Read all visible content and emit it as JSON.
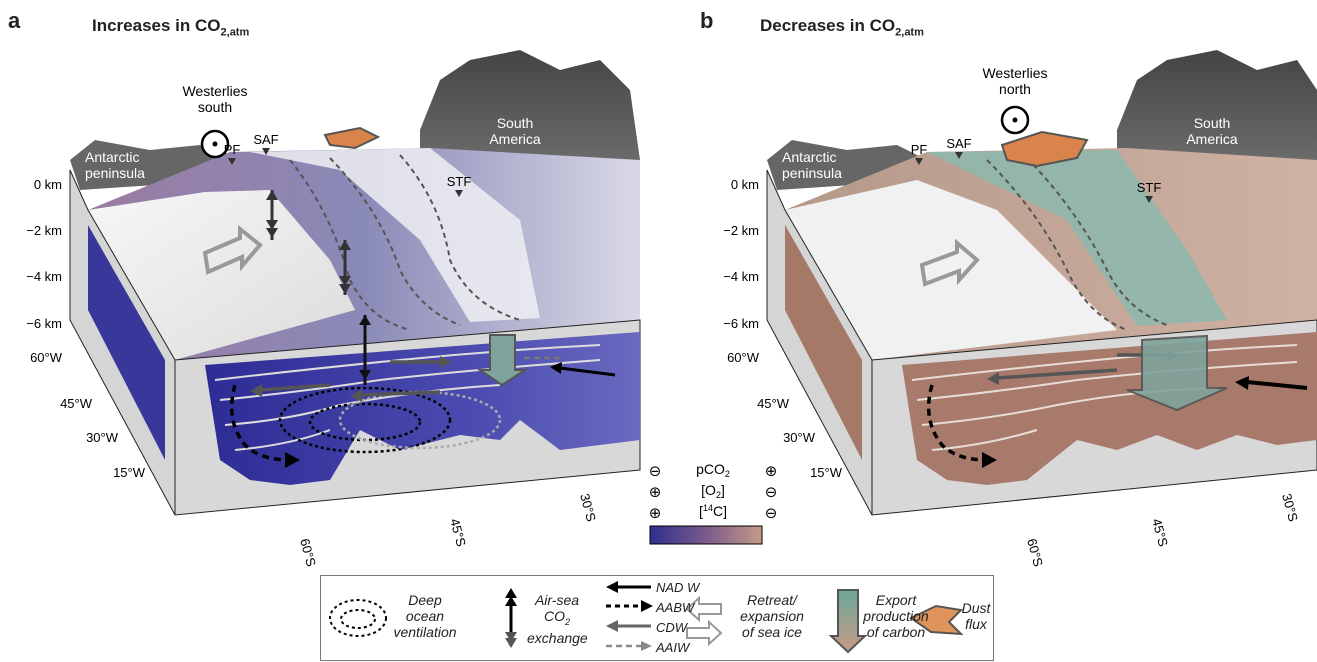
{
  "panels": [
    {
      "letter": "a",
      "title_prefix": "Increases in CO",
      "title_sub": "2,atm",
      "wind_label_line1": "Westerlies",
      "wind_label_line2": "south"
    },
    {
      "letter": "b",
      "title_prefix": "Decreases in CO",
      "title_sub": "2,atm",
      "wind_label_line1": "Westerlies",
      "wind_label_line2": "north"
    }
  ],
  "map_labels": {
    "antarctic_line1": "Antarctic",
    "antarctic_line2": "peninsula",
    "south_america_line1": "South",
    "south_america_line2": "America",
    "pf": "PF",
    "saf": "SAF",
    "stf": "STF"
  },
  "depth_ticks": [
    "0 km",
    "−2 km",
    "−4 km",
    "−6 km"
  ],
  "lon_ticks": [
    "60°W",
    "45°W",
    "30°W",
    "15°W"
  ],
  "lat_ticks": [
    "60°S",
    "45°S",
    "30°S"
  ],
  "colorbar": {
    "label_pco2": "pCO",
    "label_pco2_sub": "2",
    "label_o2": "[O",
    "label_o2_sub": "2",
    "label_o2_end": "]",
    "label_c14_pre": "[",
    "label_c14_sup": "14",
    "label_c14_end": "C]",
    "left_signs": [
      "⊖",
      "⊕",
      "⊕"
    ],
    "right_signs": [
      "⊕",
      "⊖",
      "⊖"
    ],
    "low_color": "#2e2f8f",
    "high_color": "#c69a86"
  },
  "legend": {
    "deep_ocean_line1": "Deep",
    "deep_ocean_line2": "ocean",
    "deep_ocean_line3": "ventilation",
    "airsea_line1": "Air-sea",
    "airsea_line2": "CO",
    "airsea_line2_sub": "2",
    "airsea_line3": "exchange",
    "nadw": "NAD W",
    "aabw": "AABW",
    "cdw": "CDW",
    "aaiw": "AAIW",
    "seaice_line1": "Retreat/",
    "seaice_line2": "expansion",
    "seaice_line3": "of sea ice",
    "export_line1": "Export",
    "export_line2": "production",
    "export_line3": "of carbon",
    "dust_line1": "Dust",
    "dust_line2": "flux"
  },
  "colors": {
    "ocean_blue": "#3b3b9c",
    "ocean_brown": "#a87c70",
    "ice_white": "#f2f2f2",
    "export_teal": "#7fb3a8",
    "dust_orange": "#e0935a"
  }
}
